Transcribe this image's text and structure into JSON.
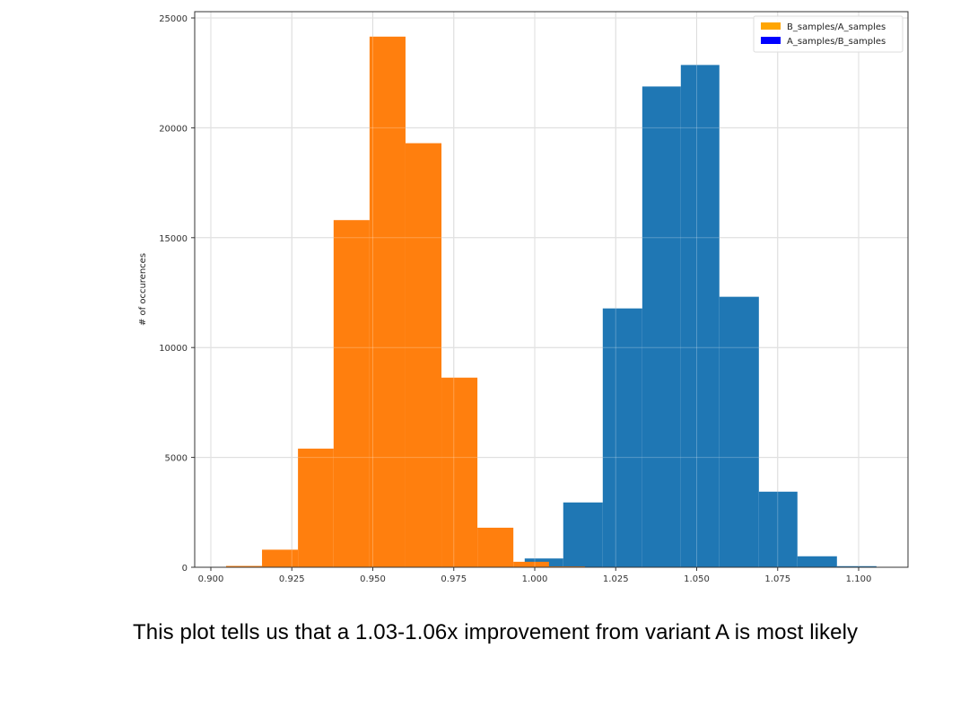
{
  "chart_data": {
    "type": "bar",
    "subtype": "histogram",
    "title": "",
    "xlabel": "",
    "ylabel": "# of occurences",
    "xlim": [
      0.895,
      1.112
    ],
    "ylim": [
      0,
      25300
    ],
    "xticks": [
      0.9,
      0.925,
      0.95,
      0.975,
      1.0,
      1.025,
      1.05,
      1.075,
      1.1
    ],
    "xtick_labels": [
      "0.900",
      "0.925",
      "0.950",
      "0.975",
      "1.000",
      "1.025",
      "1.050",
      "1.075",
      "1.100"
    ],
    "yticks": [
      0,
      5000,
      10000,
      15000,
      20000,
      25000
    ],
    "ytick_labels": [
      "0",
      "5000",
      "10000",
      "15000",
      "20000",
      "25000"
    ],
    "grid": true,
    "legend_position": "top-right",
    "legend": [
      {
        "label": "B_samples/A_samples",
        "color": "#ffa500"
      },
      {
        "label": "A_samples/B_samples",
        "color": "#0000ff"
      }
    ],
    "series": [
      {
        "name": "A_samples/B_samples",
        "color": "#1f77b4",
        "bin_edges": [
          0.9969,
          1.0088,
          1.021,
          1.0332,
          1.0451,
          1.057,
          1.0692,
          1.0811,
          1.0933,
          1.1055
        ],
        "values": [
          400,
          2950,
          11780,
          21880,
          22860,
          12310,
          3440,
          500,
          50
        ]
      },
      {
        "name": "B_samples/A_samples",
        "color": "#ff7f0e",
        "bin_edges": [
          0.9047,
          0.9158,
          0.9269,
          0.9379,
          0.949,
          0.9601,
          0.9712,
          0.9823,
          0.9934,
          1.0044,
          1.0155
        ],
        "values": [
          60,
          800,
          5400,
          15800,
          24150,
          19300,
          8630,
          1800,
          250,
          40
        ]
      }
    ]
  },
  "caption": "This plot tells us that a 1.03-1.06x improvement from variant A is most likely"
}
